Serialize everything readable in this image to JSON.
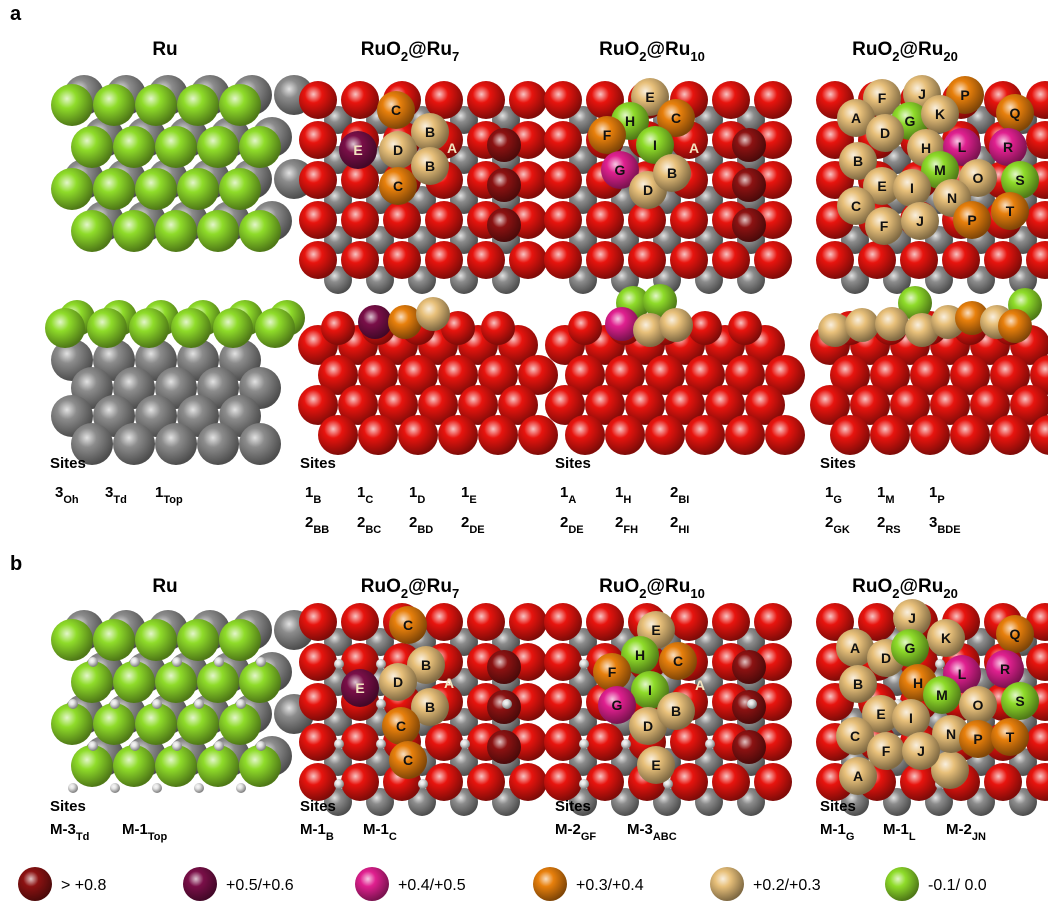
{
  "panels": [
    {
      "label": "a",
      "columns": [
        {
          "title": [
            "Ru"
          ],
          "sites_heading": "Sites",
          "sites": [
            [
              [
                "3",
                "Oh"
              ],
              [
                "3",
                "Td"
              ],
              [
                "1",
                "Top"
              ]
            ]
          ],
          "atoms": []
        },
        {
          "title": [
            "RuO",
            "2",
            "@Ru",
            "7"
          ],
          "sites_heading": "Sites",
          "sites": [
            [
              [
                "1",
                "B"
              ],
              [
                "1",
                "C"
              ],
              [
                "1",
                "D"
              ],
              [
                "1",
                "E"
              ]
            ],
            [
              [
                "2",
                "BB"
              ],
              [
                "2",
                "BC"
              ],
              [
                "2",
                "BD"
              ],
              [
                "2",
                "DE"
              ]
            ]
          ],
          "atoms": [
            "C",
            "B",
            "E",
            "D",
            "A",
            "B",
            "C"
          ]
        },
        {
          "title": [
            "RuO",
            "2",
            "@Ru",
            "10"
          ],
          "sites_heading": "Sites",
          "sites": [
            [
              [
                "1",
                "A"
              ],
              [
                "1",
                "H"
              ],
              [
                "2",
                "BI"
              ]
            ],
            [
              [
                "2",
                "DE"
              ],
              [
                "2",
                "FH"
              ],
              [
                "2",
                "HI"
              ]
            ]
          ],
          "atoms": [
            "E",
            "C",
            "H",
            "F",
            "I",
            "A",
            "G",
            "D",
            "B"
          ]
        },
        {
          "title": [
            "RuO",
            "2",
            "@Ru",
            "20"
          ],
          "sites_heading": "Sites",
          "sites": [
            [
              [
                "1",
                "G"
              ],
              [
                "1",
                "M"
              ],
              [
                "1",
                "P"
              ]
            ],
            [
              [
                "2",
                "GK"
              ],
              [
                "2",
                "RS"
              ],
              [
                "3",
                "BDE"
              ]
            ]
          ],
          "atoms": [
            "F",
            "J",
            "P",
            "A",
            "G",
            "K",
            "Q",
            "D",
            "H",
            "L",
            "R",
            "B",
            "M",
            "O",
            "S",
            "E",
            "I",
            "N",
            "C",
            "F",
            "J",
            "P",
            "T"
          ]
        }
      ]
    },
    {
      "label": "b",
      "columns": [
        {
          "title": [
            "Ru"
          ],
          "sites_heading": "Sites",
          "sites": [
            [
              [
                "M-3",
                "Td"
              ],
              [
                "M-1",
                "Top"
              ]
            ]
          ],
          "atoms": []
        },
        {
          "title": [
            "RuO",
            "2",
            "@Ru",
            "7"
          ],
          "sites_heading": "Sites",
          "sites": [
            [
              [
                "M-1",
                "B"
              ],
              [
                "M-1",
                "C"
              ]
            ]
          ],
          "atoms": [
            "C",
            "B",
            "E",
            "D",
            "A",
            "B",
            "C",
            "C"
          ]
        },
        {
          "title": [
            "RuO",
            "2",
            "@Ru",
            "10"
          ],
          "sites_heading": "Sites",
          "sites": [
            [
              [
                "M-2",
                "GF"
              ],
              [
                "M-3",
                "ABC"
              ]
            ]
          ],
          "atoms": [
            "E",
            "H",
            "C",
            "F",
            "I",
            "A",
            "G",
            "D",
            "B",
            "E"
          ]
        },
        {
          "title": [
            "RuO",
            "2",
            "@Ru",
            "20"
          ],
          "sites_heading": "Sites",
          "sites": [
            [
              [
                "M-1",
                "G"
              ],
              [
                "M-1",
                "L"
              ],
              [
                "M-2",
                "JN"
              ]
            ]
          ],
          "atoms": [
            "J",
            "K",
            "Q",
            "A",
            "D",
            "G",
            "H",
            "L",
            "R",
            "M",
            "O",
            "S",
            "B",
            "E",
            "I",
            "N",
            "P",
            "T",
            "C",
            "F",
            "J",
            "A"
          ]
        }
      ]
    }
  ],
  "legend": [
    {
      "label": "> +0.8",
      "color": "#8c1212"
    },
    {
      "label": "+0.5/+0.6",
      "color": "#7a0f48"
    },
    {
      "label": "+0.4/+0.5",
      "color": "#e0208f"
    },
    {
      "label": "+0.3/+0.4",
      "color": "#e8800c"
    },
    {
      "label": "+0.2/+0.3",
      "color": "#e8c07a"
    },
    {
      "label": "-0.1/ 0.0",
      "color": "#8fdc2a"
    }
  ]
}
